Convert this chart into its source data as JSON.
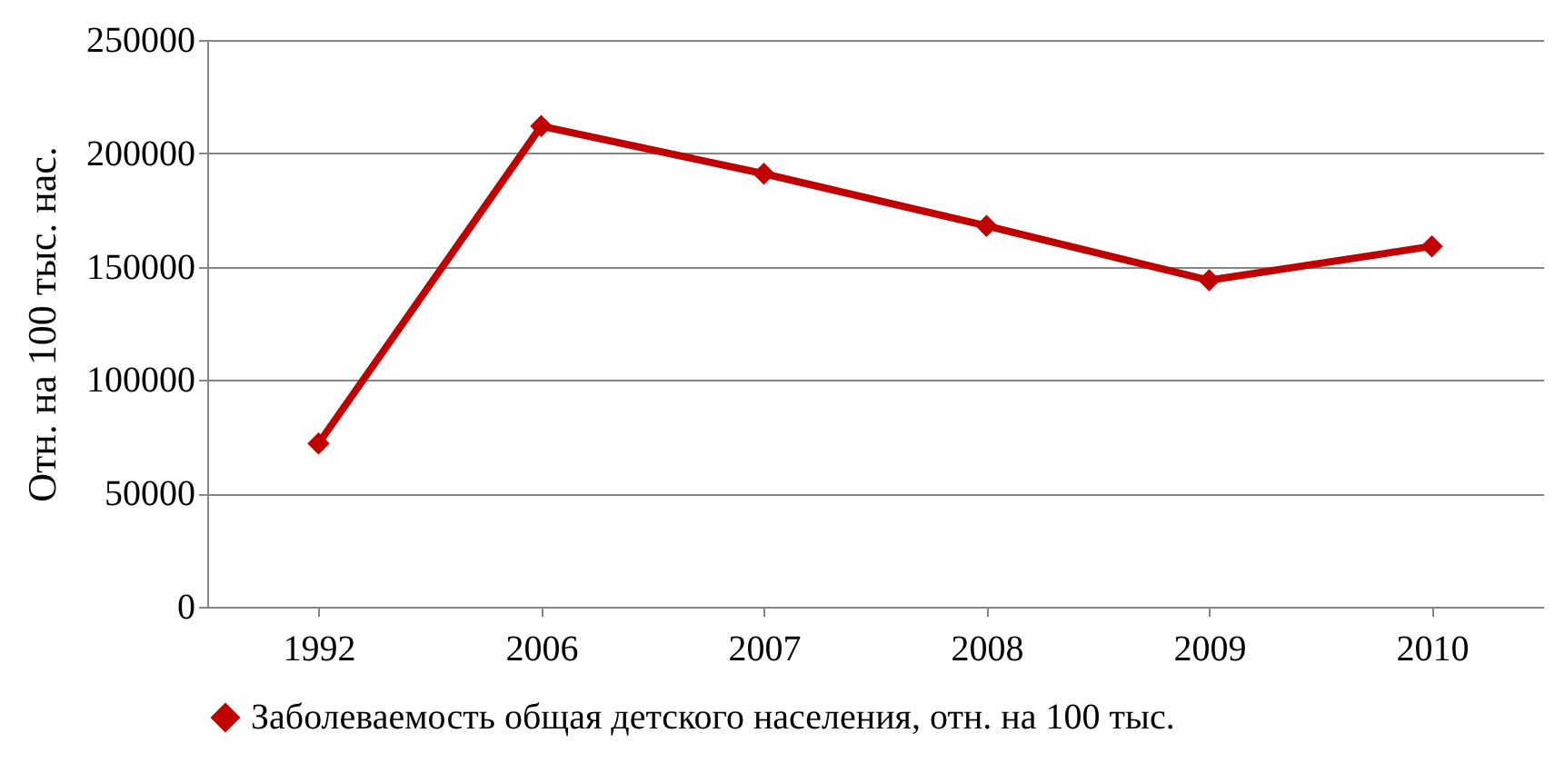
{
  "chart_data": {
    "type": "line",
    "ylabel": "Отн. на 100 тыс. нас.",
    "categories": [
      "1992",
      "2006",
      "2007",
      "2008",
      "2009",
      "2010"
    ],
    "series": [
      {
        "name": "Заболеваемость общая детского населения, отн. на 100 тыс.",
        "color": "#c00000",
        "values": [
          72000,
          212000,
          191000,
          168000,
          144000,
          159000
        ]
      }
    ],
    "ylim": [
      0,
      250000
    ],
    "yticks": [
      0,
      50000,
      100000,
      150000,
      200000,
      250000
    ],
    "grid": "y",
    "legend": "bottom",
    "marker": "diamond",
    "line_style": "solid"
  }
}
